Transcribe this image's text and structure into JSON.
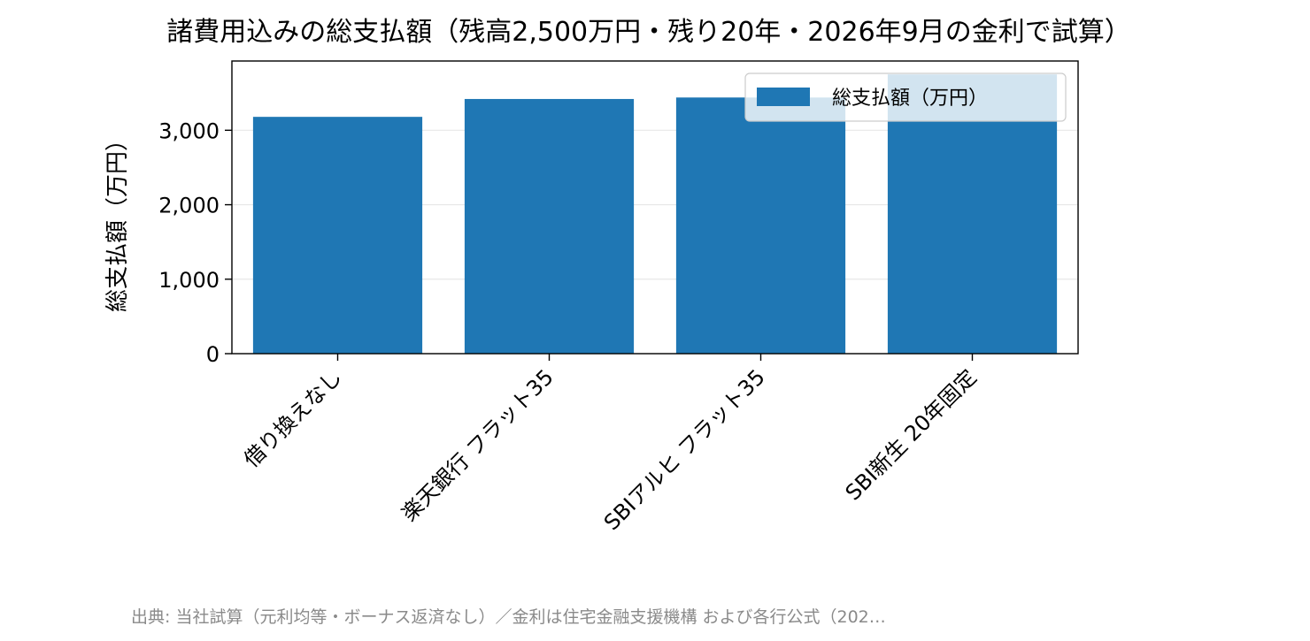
{
  "chart_data": {
    "type": "bar",
    "title": "諸費用込みの総支払額（残高2,500万円・残り20年・2026年9月の金利で試算）",
    "ylabel": "総支払額（万円）",
    "xlabel": "",
    "categories": [
      "借り換えなし",
      "楽天銀行 フラット35",
      "SBIアルヒ フラット35",
      "SBI新生 20年固定"
    ],
    "series": [
      {
        "name": "総支払額（万円）",
        "values": [
          3180,
          3420,
          3440,
          3750
        ]
      }
    ],
    "ylim": [
      0,
      3930
    ],
    "yticks": [
      0,
      1000,
      2000,
      3000
    ],
    "ytick_labels": [
      "0",
      "1,000",
      "2,000",
      "3,000"
    ],
    "grid": "y",
    "legend_position": "top-right",
    "colors": {
      "bar": "#1f77b4"
    }
  },
  "footer": {
    "source": "出典: 当社試算（元利均等・ボーナス返済なし）／金利は住宅金融支援機構 および各行公式（202…"
  }
}
